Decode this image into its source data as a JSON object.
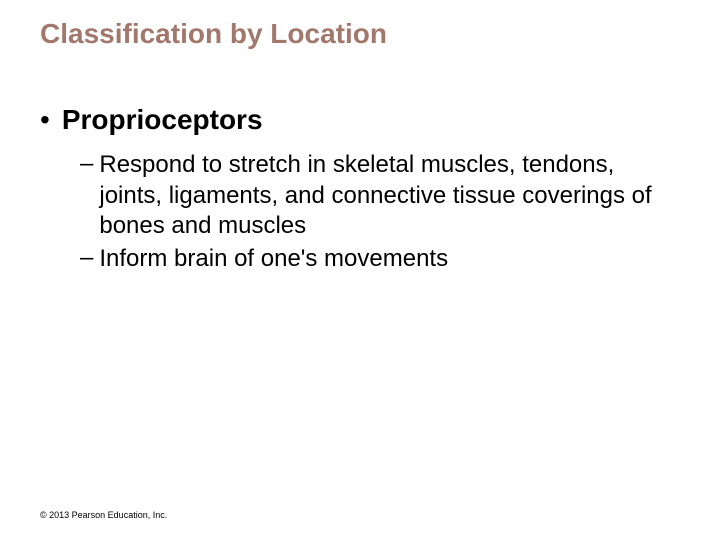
{
  "slide": {
    "title": "Classification by Location",
    "title_color": "#a3786c",
    "title_fontsize": 28,
    "background_color": "#ffffff",
    "bullets": [
      {
        "marker": "•",
        "text": "Proprioceptors",
        "fontsize": 28,
        "font_weight": "bold",
        "color": "#000000",
        "sub": [
          {
            "marker": "–",
            "text": "Respond to stretch in skeletal muscles, tendons, joints, ligaments, and connective tissue coverings of bones and muscles",
            "fontsize": 24,
            "color": "#000000"
          },
          {
            "marker": "–",
            "text": "Inform brain of one's movements",
            "fontsize": 24,
            "color": "#000000"
          }
        ]
      }
    ],
    "copyright": "© 2013 Pearson Education, Inc.",
    "copyright_fontsize": 9
  }
}
